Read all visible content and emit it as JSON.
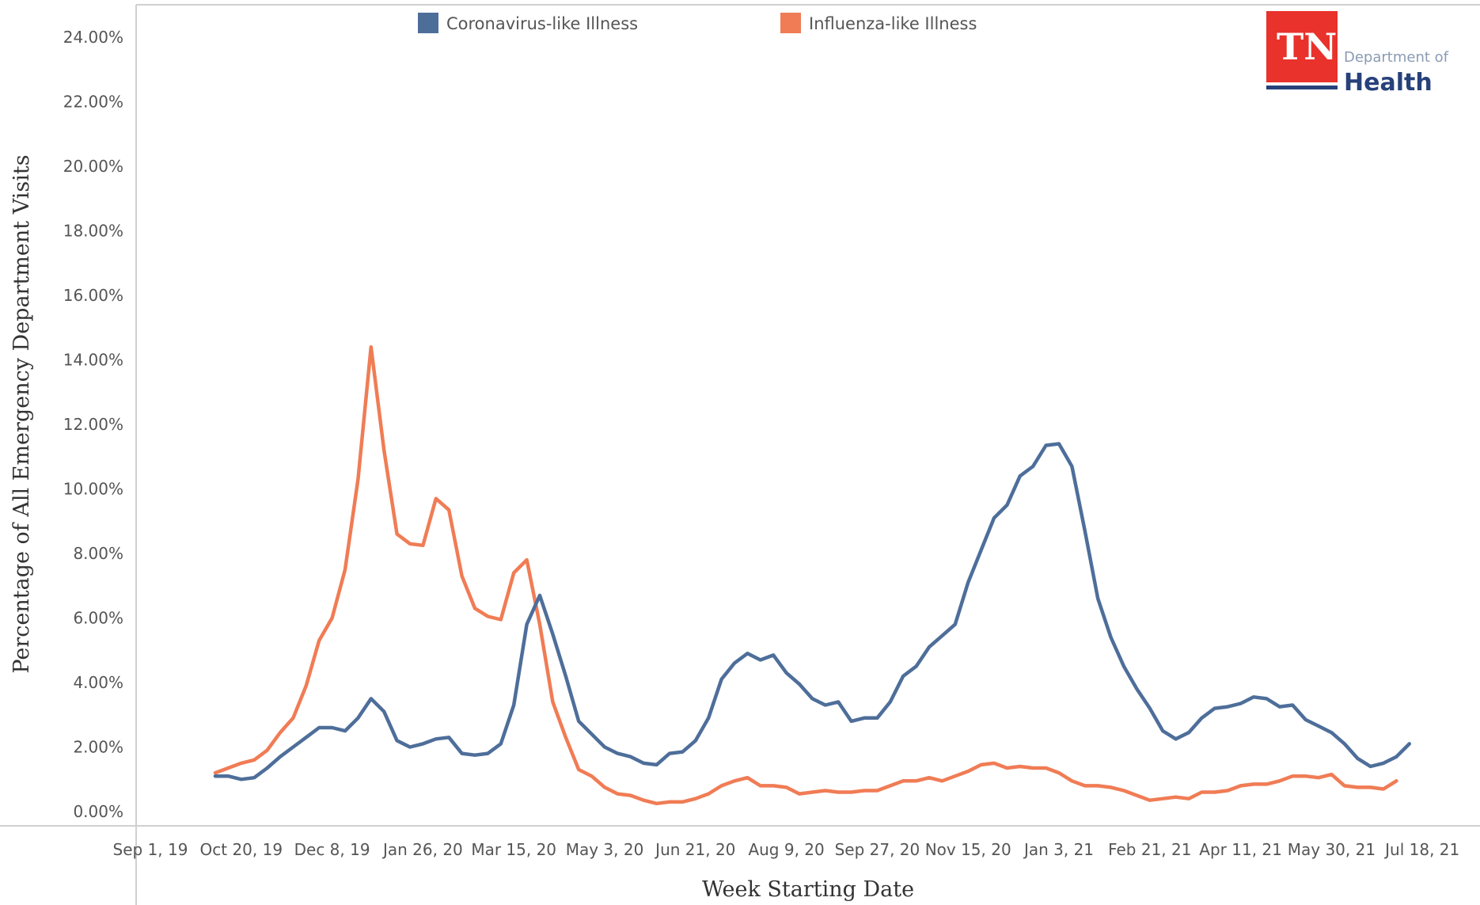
{
  "logo": {
    "mark": "TN",
    "line1": "Department of",
    "line2": "Health"
  },
  "chart_data": {
    "type": "line",
    "title": "",
    "xlabel": "Week Starting Date",
    "ylabel": "Percentage of All Emergency Department Visits",
    "ylim": [
      0,
      24
    ],
    "yticks": [
      "0.00%",
      "2.00%",
      "4.00%",
      "6.00%",
      "8.00%",
      "10.00%",
      "12.00%",
      "14.00%",
      "16.00%",
      "18.00%",
      "20.00%",
      "22.00%",
      "24.00%"
    ],
    "xticks": [
      {
        "label": "Sep 1, 19",
        "week": 0
      },
      {
        "label": "Oct 20, 19",
        "week": 7
      },
      {
        "label": "Dec 8, 19",
        "week": 14
      },
      {
        "label": "Jan 26, 20",
        "week": 21
      },
      {
        "label": "Mar 15, 20",
        "week": 28
      },
      {
        "label": "May 3, 20",
        "week": 35
      },
      {
        "label": "Jun 21, 20",
        "week": 42
      },
      {
        "label": "Aug 9, 20",
        "week": 49
      },
      {
        "label": "Sep 27, 20",
        "week": 56
      },
      {
        "label": "Nov 15, 20",
        "week": 63
      },
      {
        "label": "Jan 3, 21",
        "week": 70
      },
      {
        "label": "Feb 21, 21",
        "week": 77
      },
      {
        "label": "Apr 11, 21",
        "week": 84
      },
      {
        "label": "May 30, 21",
        "week": 91
      },
      {
        "label": "Jul 18, 21",
        "week": 98
      }
    ],
    "legend_position": "top",
    "series": [
      {
        "name": "Coronavirus-like Illness",
        "color": "#4e6e9a",
        "start_week": 5,
        "values": [
          1.1,
          1.1,
          1.0,
          1.05,
          1.35,
          1.7,
          2.0,
          2.3,
          2.6,
          2.6,
          2.5,
          2.9,
          3.5,
          3.1,
          2.2,
          2.0,
          2.1,
          2.25,
          2.3,
          1.8,
          1.75,
          1.8,
          2.1,
          3.3,
          5.8,
          6.7,
          5.5,
          4.2,
          2.8,
          2.4,
          2.0,
          1.8,
          1.7,
          1.5,
          1.45,
          1.8,
          1.85,
          2.2,
          2.9,
          4.1,
          4.6,
          4.9,
          4.7,
          4.85,
          4.3,
          3.95,
          3.5,
          3.3,
          3.4,
          2.8,
          2.9,
          2.9,
          3.4,
          4.2,
          4.5,
          5.1,
          5.45,
          5.8,
          7.1,
          8.1,
          9.1,
          9.5,
          10.4,
          10.7,
          11.35,
          11.4,
          10.7,
          8.7,
          6.6,
          5.4,
          4.5,
          3.8,
          3.2,
          2.5,
          2.25,
          2.45,
          2.9,
          3.2,
          3.25,
          3.35,
          3.55,
          3.5,
          3.25,
          3.3,
          2.85,
          2.65,
          2.45,
          2.1,
          1.65,
          1.4,
          1.5,
          1.7,
          2.1
        ]
      },
      {
        "name": "Influenza-like Illness",
        "color": "#f07c55",
        "start_week": 5,
        "values": [
          1.2,
          1.35,
          1.5,
          1.6,
          1.9,
          2.45,
          2.9,
          3.9,
          5.3,
          6.0,
          7.5,
          10.3,
          14.4,
          11.2,
          8.6,
          8.3,
          8.25,
          9.7,
          9.35,
          7.3,
          6.3,
          6.05,
          5.95,
          7.4,
          7.8,
          5.8,
          3.4,
          2.3,
          1.3,
          1.1,
          0.75,
          0.55,
          0.5,
          0.35,
          0.25,
          0.3,
          0.3,
          0.4,
          0.55,
          0.8,
          0.95,
          1.05,
          0.8,
          0.8,
          0.75,
          0.55,
          0.6,
          0.65,
          0.6,
          0.6,
          0.65,
          0.65,
          0.8,
          0.95,
          0.95,
          1.05,
          0.95,
          1.1,
          1.25,
          1.45,
          1.5,
          1.35,
          1.4,
          1.35,
          1.35,
          1.2,
          0.95,
          0.8,
          0.8,
          0.75,
          0.65,
          0.5,
          0.35,
          0.4,
          0.45,
          0.4,
          0.6,
          0.6,
          0.65,
          0.8,
          0.85,
          0.85,
          0.95,
          1.1,
          1.1,
          1.05,
          1.15,
          0.8,
          0.75,
          0.75,
          0.7,
          0.95
        ]
      }
    ]
  }
}
